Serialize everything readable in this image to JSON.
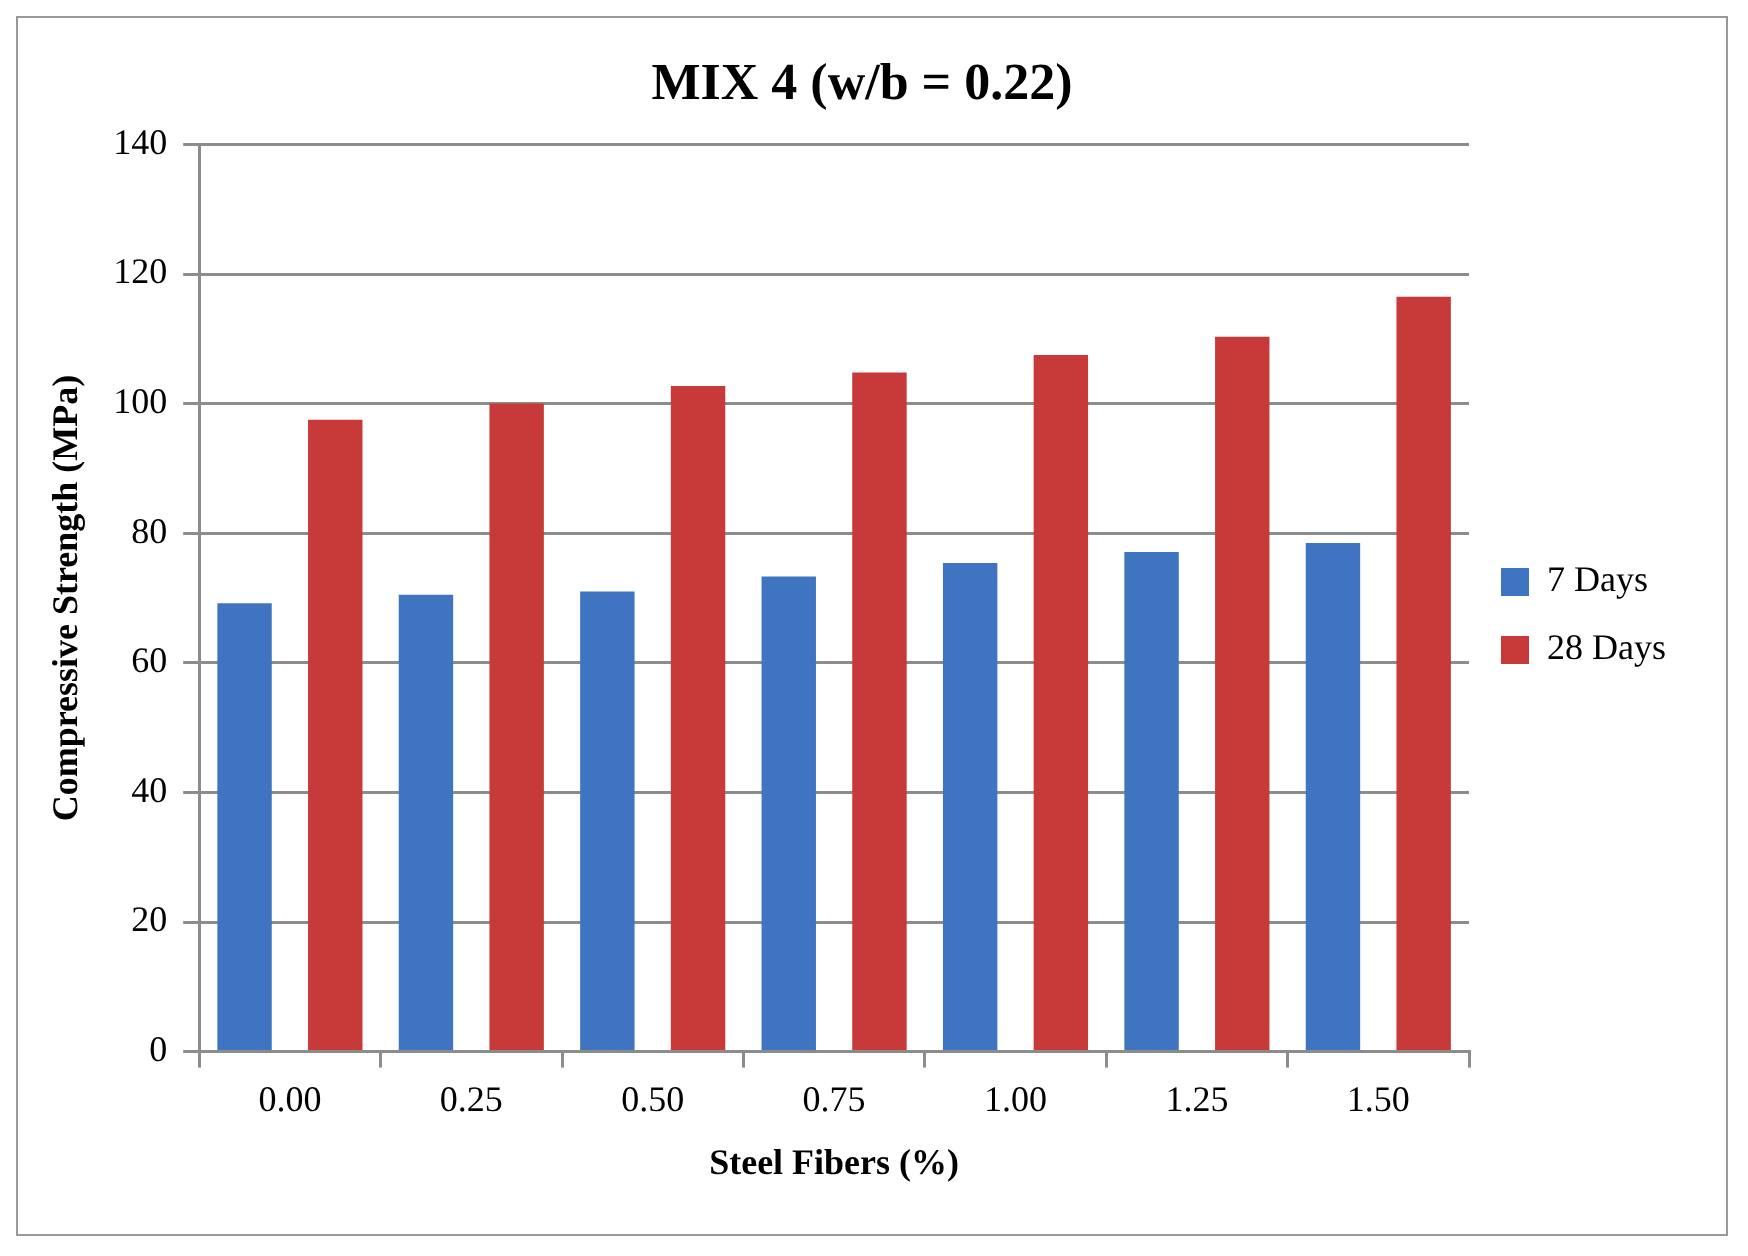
{
  "chart_data": {
    "type": "bar",
    "title": "MIX 4 (w/b = 0.22)",
    "xlabel": "Steel Fibers (%)",
    "ylabel": "Compressive Strength (MPa)",
    "categories": [
      "0.00",
      "0.25",
      "0.50",
      "0.75",
      "1.00",
      "1.25",
      "1.50"
    ],
    "series": [
      {
        "name": "7 Days",
        "color": "#3f75c0",
        "values": [
          69.2,
          70.5,
          71,
          73.3,
          75.4,
          77.1,
          78.5
        ]
      },
      {
        "name": "28 Days",
        "color": "#c83a3a",
        "values": [
          97.5,
          100,
          102.7,
          104.8,
          107.5,
          110.3,
          116.5
        ]
      }
    ],
    "ylim": [
      0,
      140
    ],
    "yticks": [
      0,
      20,
      40,
      60,
      80,
      100,
      120,
      140
    ],
    "grid": "y",
    "legend": "right"
  }
}
